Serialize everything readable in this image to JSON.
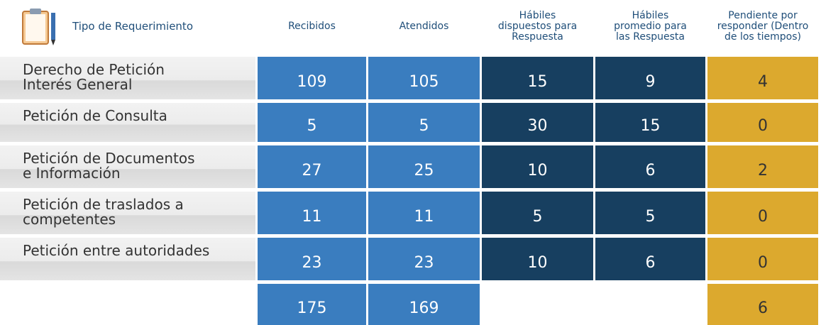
{
  "header": {
    "title": "Tipo de Requerimiento",
    "columns": [
      "Recibidos",
      "Atendidos",
      "Hábiles\ndispuestos para\nRespuesta",
      "Hábiles\npromedio para\nlas Respuesta",
      "Pendiente por\nresponder (Dentro\nde los tiempos)"
    ]
  },
  "rows": [
    {
      "label": "Derecho de Petición\nInterés General",
      "values": [
        109,
        105,
        15,
        9,
        4
      ]
    },
    {
      "label": "Petición de Consulta",
      "values": [
        5,
        5,
        30,
        15,
        0
      ]
    },
    {
      "label": "Petición de Documentos\ne Información",
      "values": [
        27,
        25,
        10,
        6,
        2
      ]
    },
    {
      "label": "Petición de traslados a\ncompetentes",
      "values": [
        11,
        11,
        5,
        5,
        0
      ]
    },
    {
      "label": "Petición entre autoridades",
      "values": [
        23,
        23,
        10,
        6,
        0
      ]
    }
  ],
  "totals": {
    "recibidos": 175,
    "atendidos": 169,
    "pendiente": 6
  }
}
